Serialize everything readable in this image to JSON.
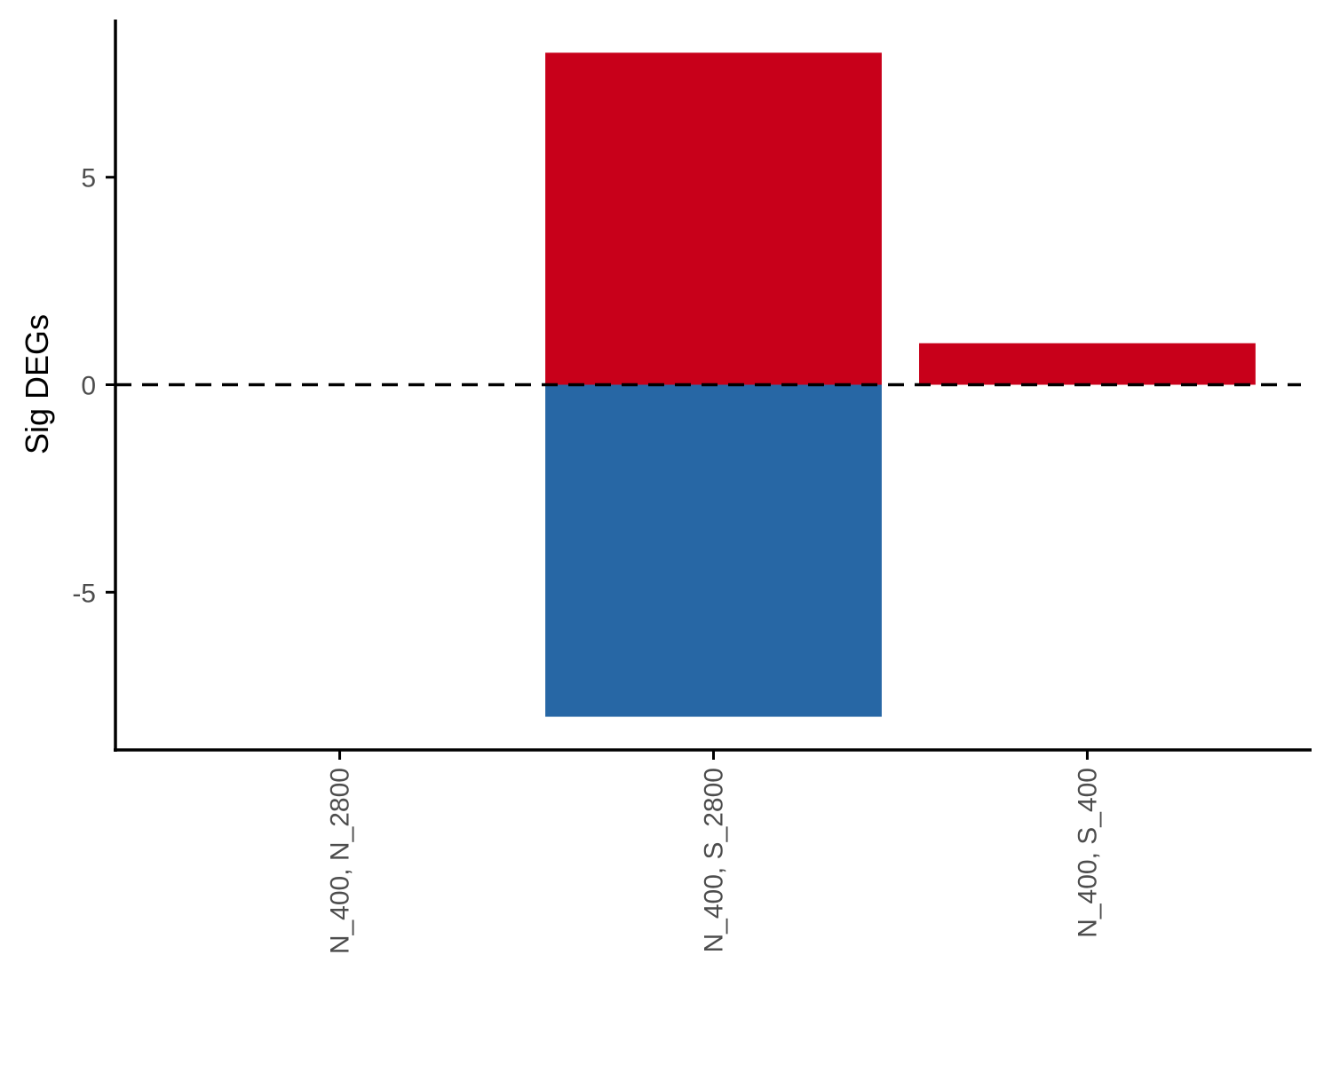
{
  "chart_data": {
    "type": "bar",
    "title": "",
    "xlabel": "",
    "ylabel": "Sig DEGs",
    "categories": [
      "N_400, N_2800",
      "N_400, S_2800",
      "N_400, S_400"
    ],
    "series": [
      {
        "values": [
          0,
          8,
          1
        ],
        "color": "#C8001A"
      },
      {
        "values": [
          0,
          -8,
          0
        ],
        "color": "#2767A5"
      }
    ],
    "yticks": [
      -5,
      0,
      5
    ],
    "ylim": [
      -8.8,
      8.8
    ],
    "reference_line": {
      "y": 0,
      "style": "dashed",
      "color": "#000000"
    },
    "grid": false,
    "legend": "none"
  }
}
